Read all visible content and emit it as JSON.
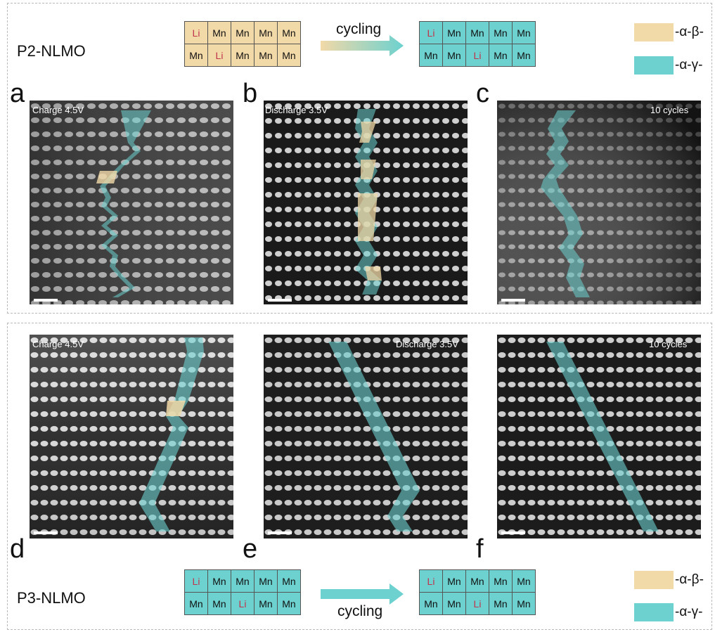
{
  "colors": {
    "beta": "#f2d9a8",
    "gamma": "#6cd1cf",
    "li": "#c0354d"
  },
  "top": {
    "title": "P2-NLMO",
    "arrow_label": "cycling",
    "grid_before": [
      [
        "Li",
        "Mn",
        "Mn",
        "Mn",
        "Mn"
      ],
      [
        "Mn",
        "Li",
        "Mn",
        "Mn",
        "Mn"
      ]
    ],
    "grid_after": [
      [
        "Li",
        "Mn",
        "Mn",
        "Mn",
        "Mn"
      ],
      [
        "Mn",
        "Mn",
        "Li",
        "Mn",
        "Mn"
      ]
    ],
    "legend_beta": "-α-β-",
    "legend_gamma": "-α-γ-"
  },
  "bottom": {
    "title": "P3-NLMO",
    "arrow_label": "cycling",
    "grid_before": [
      [
        "Li",
        "Mn",
        "Mn",
        "Mn",
        "Mn"
      ],
      [
        "Mn",
        "Mn",
        "Li",
        "Mn",
        "Mn"
      ]
    ],
    "grid_after": [
      [
        "Li",
        "Mn",
        "Mn",
        "Mn",
        "Mn"
      ],
      [
        "Mn",
        "Mn",
        "Li",
        "Mn",
        "Mn"
      ]
    ],
    "legend_beta": "-α-β-",
    "legend_gamma": "-α-γ-"
  },
  "panels": {
    "a": {
      "letter": "a",
      "caption": "Charge 4.5V"
    },
    "b": {
      "letter": "b",
      "caption": "Discharge 3.5V"
    },
    "c": {
      "letter": "c",
      "caption": "10 cycles"
    },
    "d": {
      "letter": "d",
      "caption": "Charge 4.5V"
    },
    "e": {
      "letter": "e",
      "caption": "Discharge 3.5V"
    },
    "f": {
      "letter": "f",
      "caption": "10 cycles"
    }
  }
}
